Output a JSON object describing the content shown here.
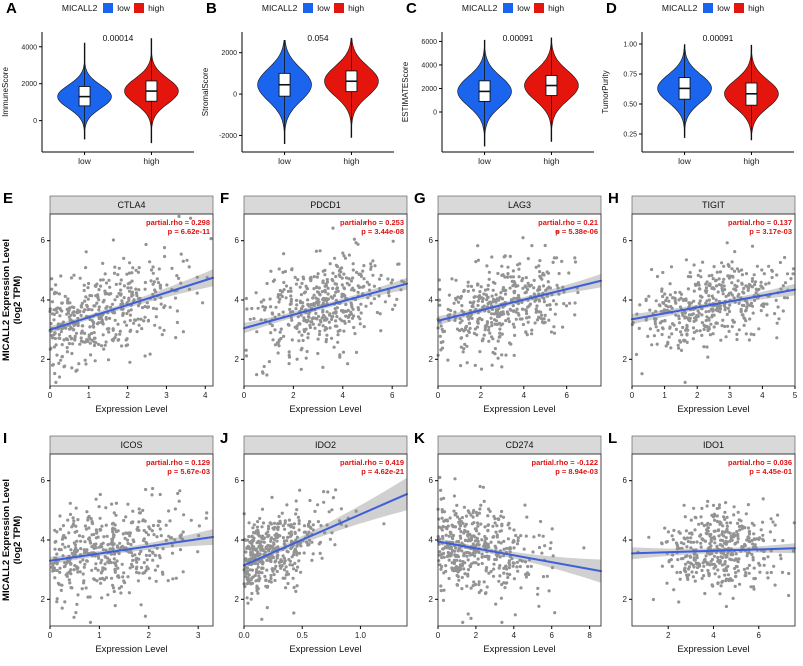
{
  "figure": {
    "background": "#ffffff",
    "colors": {
      "low": "#1B64EE",
      "high": "#E4150D",
      "point": "#3C3C3C",
      "line": "#3D5FD9",
      "band": "#8F8F8F",
      "strip_bg": "#D9D9D9",
      "annotation": "#DE1212"
    },
    "legend": {
      "title": "MICALL2",
      "low_label": "low",
      "high_label": "high"
    }
  },
  "chart_data": {
    "scatter_ylabel": {
      "line1": "MICALL2 Expression Level",
      "line2": "(log2 TPM)"
    },
    "violin_panels": [
      {
        "type": "violin",
        "letter": "A",
        "ylabel": "ImmuneScore",
        "pvalue": "0.00014",
        "y_range": [
          -1700,
          4800
        ],
        "y_ticks": [
          {
            "v": 0,
            "label": "0"
          },
          {
            "v": 2000,
            "label": "2000"
          },
          {
            "v": 4000,
            "label": "4000"
          }
        ],
        "low": {
          "center": 1300,
          "spread": 620,
          "min": -1000,
          "max": 4200,
          "q1": 800,
          "q3": 1850,
          "median": 1300
        },
        "high": {
          "center": 1600,
          "spread": 680,
          "min": -1200,
          "max": 4450,
          "q1": 1050,
          "q3": 2150,
          "median": 1600
        }
      },
      {
        "type": "violin",
        "letter": "B",
        "ylabel": "StromalScore",
        "pvalue": "0.054",
        "y_range": [
          -2800,
          3000
        ],
        "y_ticks": [
          {
            "v": -2000,
            "label": "-2000"
          },
          {
            "v": 0,
            "label": "0"
          },
          {
            "v": 2000,
            "label": "2000"
          }
        ],
        "low": {
          "center": 450,
          "spread": 780,
          "min": -2400,
          "max": 2600,
          "q1": -100,
          "q3": 1000,
          "median": 450
        },
        "high": {
          "center": 620,
          "spread": 720,
          "min": -2100,
          "max": 2700,
          "q1": 120,
          "q3": 1120,
          "median": 620
        }
      },
      {
        "type": "violin",
        "letter": "C",
        "ylabel": "ESTIMATEScore",
        "pvalue": "0.00091",
        "y_range": [
          -3400,
          6800
        ],
        "y_ticks": [
          {
            "v": 0,
            "label": "0"
          },
          {
            "v": 2000,
            "label": "2000"
          },
          {
            "v": 4000,
            "label": "4000"
          },
          {
            "v": 6000,
            "label": "6000"
          }
        ],
        "low": {
          "center": 1750,
          "spread": 1250,
          "min": -2900,
          "max": 6100,
          "q1": 900,
          "q3": 2650,
          "median": 1750
        },
        "high": {
          "center": 2250,
          "spread": 1250,
          "min": -2500,
          "max": 6300,
          "q1": 1400,
          "q3": 3100,
          "median": 2250
        }
      },
      {
        "type": "violin",
        "letter": "D",
        "ylabel": "TumorPurity",
        "pvalue": "0.00091",
        "y_range": [
          0.1,
          1.1
        ],
        "y_ticks": [
          {
            "v": 0.25,
            "label": "0.25"
          },
          {
            "v": 0.5,
            "label": "0.50"
          },
          {
            "v": 0.75,
            "label": "0.75"
          },
          {
            "v": 1.0,
            "label": "1.00"
          }
        ],
        "low": {
          "center": 0.63,
          "spread": 0.115,
          "min": 0.22,
          "max": 0.995,
          "q1": 0.54,
          "q3": 0.72,
          "median": 0.63
        },
        "high": {
          "center": 0.585,
          "spread": 0.115,
          "min": 0.2,
          "max": 0.99,
          "q1": 0.49,
          "q3": 0.675,
          "median": 0.585
        }
      }
    ],
    "scatter_panels": [
      {
        "type": "scatter",
        "letter": "E",
        "gene": "CTLA4",
        "xlabel": "Expression Level",
        "ann1": "partial.rho = 0.298",
        "ann2": "p = 6.62e-11",
        "x_range": [
          0,
          4.2
        ],
        "y_range": [
          1.1,
          6.9
        ],
        "x_ticks": [
          {
            "v": 0,
            "label": "0"
          },
          {
            "v": 1,
            "label": "1"
          },
          {
            "v": 2,
            "label": "2"
          },
          {
            "v": 3,
            "label": "3"
          },
          {
            "v": 4,
            "label": "4"
          }
        ],
        "y_ticks": [
          {
            "v": 2,
            "label": "2"
          },
          {
            "v": 4,
            "label": "4"
          },
          {
            "v": 6,
            "label": "6"
          }
        ],
        "trend": {
          "x0": 0,
          "y0": 3.0,
          "x1": 4.2,
          "y1": 4.75
        },
        "n": 430,
        "x_mean": 1.25,
        "x_sd": 1.0,
        "x_abs": true,
        "resid_sd": 0.75,
        "seed": 11,
        "band_base": 2.5,
        "band_flare": 12
      },
      {
        "type": "scatter",
        "letter": "F",
        "gene": "PDCD1",
        "xlabel": "Expression Level",
        "ann1": "partial.rho = 0.253",
        "ann2": "p = 3.44e-08",
        "x_range": [
          0,
          6.6
        ],
        "y_range": [
          1.1,
          6.9
        ],
        "x_ticks": [
          {
            "v": 0,
            "label": "0"
          },
          {
            "v": 2,
            "label": "2"
          },
          {
            "v": 4,
            "label": "4"
          },
          {
            "v": 6,
            "label": "6"
          }
        ],
        "y_ticks": [
          {
            "v": 2,
            "label": "2"
          },
          {
            "v": 4,
            "label": "4"
          },
          {
            "v": 6,
            "label": "6"
          }
        ],
        "trend": {
          "x0": 0,
          "y0": 3.05,
          "x1": 6.6,
          "y1": 4.55
        },
        "n": 430,
        "x_mean": 3.1,
        "x_sd": 1.4,
        "x_abs": true,
        "resid_sd": 0.75,
        "seed": 23,
        "band_base": 2.5,
        "band_flare": 12
      },
      {
        "type": "scatter",
        "letter": "G",
        "gene": "LAG3",
        "xlabel": "Expression Level",
        "ann1": "partial.rho = 0.21",
        "ann2": "p = 5.38e-06",
        "x_range": [
          0,
          7.6
        ],
        "y_range": [
          1.1,
          6.9
        ],
        "x_ticks": [
          {
            "v": 0,
            "label": "0"
          },
          {
            "v": 2,
            "label": "2"
          },
          {
            "v": 4,
            "label": "4"
          },
          {
            "v": 6,
            "label": "6"
          }
        ],
        "y_ticks": [
          {
            "v": 2,
            "label": "2"
          },
          {
            "v": 4,
            "label": "4"
          },
          {
            "v": 6,
            "label": "6"
          }
        ],
        "trend": {
          "x0": 0,
          "y0": 3.3,
          "x1": 7.6,
          "y1": 4.65
        },
        "n": 430,
        "x_mean": 3.1,
        "x_sd": 1.6,
        "x_abs": true,
        "resid_sd": 0.72,
        "seed": 37,
        "band_base": 2.5,
        "band_flare": 12
      },
      {
        "type": "scatter",
        "letter": "H",
        "gene": "TIGIT",
        "xlabel": "Expression Level",
        "ann1": "partial.rho = 0.137",
        "ann2": "p = 3.17e-03",
        "x_range": [
          0,
          5.0
        ],
        "y_range": [
          1.1,
          6.9
        ],
        "x_ticks": [
          {
            "v": 0,
            "label": "0"
          },
          {
            "v": 1,
            "label": "1"
          },
          {
            "v": 2,
            "label": "2"
          },
          {
            "v": 3,
            "label": "3"
          },
          {
            "v": 4,
            "label": "4"
          },
          {
            "v": 5,
            "label": "5"
          }
        ],
        "y_ticks": [
          {
            "v": 2,
            "label": "2"
          },
          {
            "v": 4,
            "label": "4"
          },
          {
            "v": 6,
            "label": "6"
          }
        ],
        "trend": {
          "x0": 0,
          "y0": 3.35,
          "x1": 5.0,
          "y1": 4.35
        },
        "n": 430,
        "x_mean": 2.4,
        "x_sd": 1.15,
        "x_abs": true,
        "resid_sd": 0.72,
        "seed": 49,
        "band_base": 2.5,
        "band_flare": 12
      },
      {
        "type": "scatter",
        "letter": "I",
        "gene": "ICOS",
        "xlabel": "Expression Level",
        "ann1": "partial.rho = 0.129",
        "ann2": "p = 5.67e-03",
        "x_range": [
          0,
          3.3
        ],
        "y_range": [
          1.1,
          6.9
        ],
        "x_ticks": [
          {
            "v": 0,
            "label": "0"
          },
          {
            "v": 1,
            "label": "1"
          },
          {
            "v": 2,
            "label": "2"
          },
          {
            "v": 3,
            "label": "3"
          }
        ],
        "y_ticks": [
          {
            "v": 2,
            "label": "2"
          },
          {
            "v": 4,
            "label": "4"
          },
          {
            "v": 6,
            "label": "6"
          }
        ],
        "trend": {
          "x0": 0,
          "y0": 3.3,
          "x1": 3.3,
          "y1": 4.1
        },
        "n": 430,
        "x_mean": 1.1,
        "x_sd": 0.85,
        "x_abs": true,
        "resid_sd": 0.75,
        "seed": 61,
        "band_base": 2.5,
        "band_flare": 12
      },
      {
        "type": "scatter",
        "letter": "J",
        "gene": "IDO2",
        "xlabel": "Expression Level",
        "ann1": "partial.rho = 0.419",
        "ann2": "p = 4.62e-21",
        "x_range": [
          0,
          1.4
        ],
        "y_range": [
          1.1,
          6.9
        ],
        "x_ticks": [
          {
            "v": 0,
            "label": "0.0"
          },
          {
            "v": 0.5,
            "label": "0.5"
          },
          {
            "v": 1.0,
            "label": "1.0"
          }
        ],
        "y_ticks": [
          {
            "v": 2,
            "label": "2"
          },
          {
            "v": 4,
            "label": "4"
          },
          {
            "v": 6,
            "label": "6"
          }
        ],
        "trend": {
          "x0": 0,
          "y0": 3.15,
          "x1": 1.4,
          "y1": 5.55
        },
        "n": 420,
        "x_mean": 0.1,
        "x_sd": 0.34,
        "x_abs": true,
        "resid_sd": 0.62,
        "seed": 73,
        "band_base": 2.5,
        "band_flare": 16
      },
      {
        "type": "scatter",
        "letter": "K",
        "gene": "CD274",
        "xlabel": "Expression Level",
        "ann1": "partial.rho = -0.122",
        "ann2": "p = 8.94e-03",
        "x_range": [
          0,
          8.6
        ],
        "y_range": [
          1.1,
          6.9
        ],
        "x_ticks": [
          {
            "v": 0,
            "label": "0"
          },
          {
            "v": 2,
            "label": "2"
          },
          {
            "v": 4,
            "label": "4"
          },
          {
            "v": 6,
            "label": "6"
          },
          {
            "v": 8,
            "label": "8"
          }
        ],
        "y_ticks": [
          {
            "v": 2,
            "label": "2"
          },
          {
            "v": 4,
            "label": "4"
          },
          {
            "v": 6,
            "label": "6"
          }
        ],
        "trend": {
          "x0": 0,
          "y0": 3.95,
          "x1": 8.6,
          "y1": 2.95
        },
        "n": 430,
        "x_mean": 2.1,
        "x_sd": 1.7,
        "x_abs": true,
        "resid_sd": 0.78,
        "seed": 87,
        "band_base": 2.5,
        "band_flare": 16
      },
      {
        "type": "scatter",
        "letter": "L",
        "gene": "IDO1",
        "xlabel": "Expression Level",
        "ann1": "partial.rho = 0.036",
        "ann2": "p = 4.45e-01",
        "x_range": [
          0.4,
          7.6
        ],
        "y_range": [
          1.1,
          6.9
        ],
        "x_ticks": [
          {
            "v": 2,
            "label": "2"
          },
          {
            "v": 4,
            "label": "4"
          },
          {
            "v": 6,
            "label": "6"
          }
        ],
        "y_ticks": [
          {
            "v": 2,
            "label": "2"
          },
          {
            "v": 4,
            "label": "4"
          },
          {
            "v": 6,
            "label": "6"
          }
        ],
        "trend": {
          "x0": 0.4,
          "y0": 3.55,
          "x1": 7.6,
          "y1": 3.72
        },
        "n": 430,
        "x_mean": 4.3,
        "x_sd": 1.25,
        "x_abs": false,
        "resid_sd": 0.72,
        "seed": 99,
        "band_base": 2.5,
        "band_flare": 12
      }
    ]
  }
}
